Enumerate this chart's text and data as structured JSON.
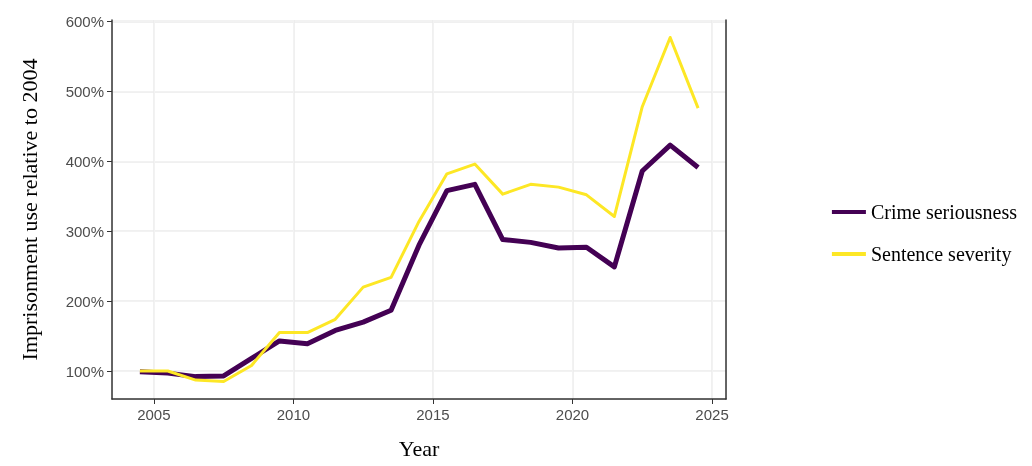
{
  "chart_data": {
    "type": "line",
    "xlabel": "Year",
    "ylabel": "Imprisonment use relative to 2004",
    "x": [
      2004.5,
      2005.5,
      2006.5,
      2007.5,
      2008.5,
      2009.5,
      2010.5,
      2011.5,
      2012.5,
      2013.5,
      2014.5,
      2015.5,
      2016.5,
      2017.5,
      2018.5,
      2019.5,
      2020.5,
      2021.5,
      2022.5,
      2023.5,
      2024.5
    ],
    "series": [
      {
        "name": "Crime seriousness",
        "color": "#440154",
        "values": [
          99,
          97,
          92,
          93,
          118,
          143,
          139,
          158,
          170,
          187,
          280,
          358,
          367,
          288,
          284,
          276,
          277,
          249,
          386,
          423,
          391
        ]
      },
      {
        "name": "Sentence severity",
        "color": "#fde725",
        "values": [
          100,
          100,
          87,
          85,
          108,
          155,
          155,
          174,
          220,
          234,
          314,
          382,
          396,
          353,
          367,
          363,
          352,
          321,
          478,
          577,
          476
        ]
      }
    ],
    "xlim": [
      2003.5,
      2025.5
    ],
    "xticks": [
      2005,
      2010,
      2015,
      2020,
      2025
    ],
    "ylim": [
      60,
      602
    ],
    "yticks": [
      {
        "value": 100,
        "label": "100%"
      },
      {
        "value": 200,
        "label": "200%"
      },
      {
        "value": 300,
        "label": "300%"
      },
      {
        "value": 400,
        "label": "400%"
      },
      {
        "value": 500,
        "label": "500%"
      },
      {
        "value": 600,
        "label": "600%"
      }
    ],
    "grid": true,
    "legend": "right",
    "marker": "none",
    "line_style": "solid"
  }
}
